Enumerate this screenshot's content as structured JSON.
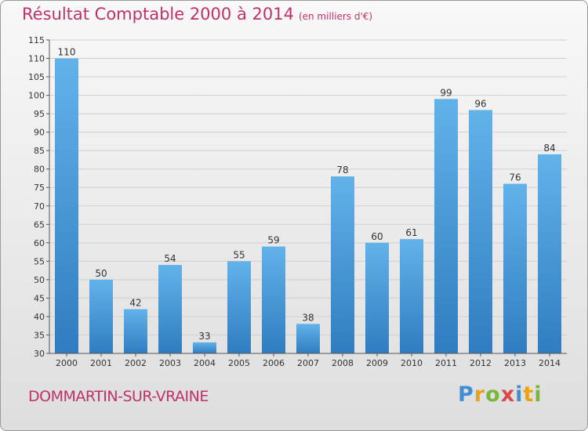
{
  "title": "Résultat Comptable 2000 à 2014",
  "unit_note": "(en milliers d'€)",
  "commune": "DOMMARTIN-SUR-VRAINE",
  "logo": [
    "P",
    "r",
    "o",
    "x",
    "i",
    "t",
    "i"
  ],
  "colors": {
    "title": "#c0306a",
    "bar_light": "#62b2ea",
    "bar_dark": "#2f7dc0"
  },
  "chart_data": {
    "type": "bar",
    "categories": [
      "2000",
      "2001",
      "2002",
      "2003",
      "2004",
      "2005",
      "2006",
      "2007",
      "2008",
      "2009",
      "2010",
      "2011",
      "2012",
      "2013",
      "2014"
    ],
    "values": [
      110,
      50,
      42,
      54,
      33,
      55,
      59,
      38,
      78,
      60,
      61,
      99,
      96,
      76,
      84
    ],
    "ylim": [
      30,
      115
    ],
    "yticks": [
      30,
      35,
      40,
      45,
      50,
      55,
      60,
      65,
      70,
      75,
      80,
      85,
      90,
      95,
      100,
      105,
      110,
      115
    ],
    "grid": true
  }
}
